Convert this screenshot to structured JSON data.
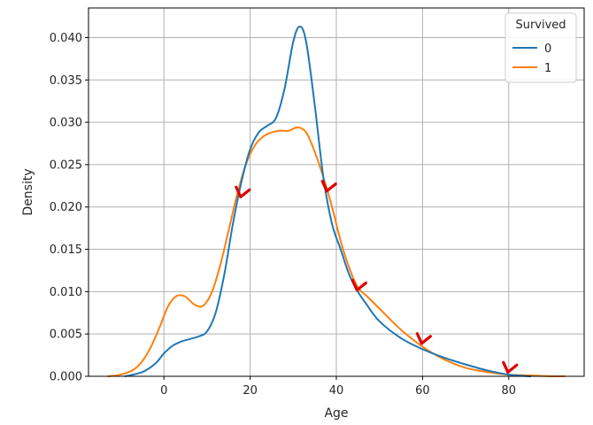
{
  "chart_data": {
    "type": "line",
    "xlabel": "Age",
    "ylabel": "Density",
    "xlim": [
      -17.5,
      97.5
    ],
    "ylim": [
      0,
      0.0435
    ],
    "xticks": [
      0,
      20,
      40,
      60,
      80
    ],
    "xtick_labels": [
      "0",
      "20",
      "40",
      "60",
      "80"
    ],
    "yticks": [
      0,
      0.005,
      0.01,
      0.015,
      0.02,
      0.025,
      0.03,
      0.035,
      0.04
    ],
    "ytick_labels": [
      "0.000",
      "0.005",
      "0.010",
      "0.015",
      "0.020",
      "0.025",
      "0.030",
      "0.035",
      "0.040"
    ],
    "grid": true,
    "legend": {
      "title": "Survived",
      "placement": "top-right"
    },
    "series": [
      {
        "name": "0",
        "color": "#1f77b4",
        "x": [
          -9,
          -5,
          -2,
          0,
          2,
          4,
          6,
          8,
          10,
          12,
          14,
          16,
          18,
          20,
          22,
          24,
          26,
          28,
          30,
          31.5,
          33,
          35,
          37,
          39,
          41,
          43,
          45,
          47,
          50,
          55,
          60,
          65,
          70,
          75,
          80,
          85
        ],
        "y": [
          0.0,
          0.0005,
          0.0015,
          0.0027,
          0.0036,
          0.0041,
          0.0044,
          0.0047,
          0.0053,
          0.0075,
          0.012,
          0.018,
          0.023,
          0.0268,
          0.0288,
          0.0296,
          0.0305,
          0.034,
          0.0395,
          0.0413,
          0.0395,
          0.032,
          0.0235,
          0.018,
          0.015,
          0.012,
          0.01,
          0.0085,
          0.0065,
          0.0045,
          0.0032,
          0.0022,
          0.0014,
          0.0007,
          0.0002,
          0.0
        ]
      },
      {
        "name": "1",
        "color": "#ff7f0e",
        "x": [
          -13,
          -10,
          -7,
          -5,
          -3,
          -1,
          1,
          3,
          5,
          7,
          9,
          11,
          13,
          15,
          17,
          19,
          21,
          23,
          25,
          27,
          29,
          31,
          33,
          35,
          37,
          39,
          41,
          43,
          45,
          47,
          50,
          55,
          60,
          65,
          70,
          75,
          80,
          85,
          90,
          93
        ],
        "y": [
          0.0,
          0.0002,
          0.0008,
          0.0018,
          0.0035,
          0.0058,
          0.0083,
          0.0095,
          0.0094,
          0.0085,
          0.0083,
          0.0098,
          0.013,
          0.0172,
          0.0215,
          0.025,
          0.0272,
          0.0283,
          0.0288,
          0.029,
          0.029,
          0.0294,
          0.0288,
          0.0265,
          0.0235,
          0.02,
          0.016,
          0.0128,
          0.0105,
          0.0095,
          0.008,
          0.0055,
          0.0035,
          0.002,
          0.001,
          0.0005,
          0.0002,
          0.0001,
          0.0,
          0.0
        ]
      }
    ],
    "annotations": [
      {
        "type": "checkmark",
        "color": "#dd0000",
        "x": 18,
        "y": 0.0215
      },
      {
        "type": "checkmark",
        "color": "#dd0000",
        "x": 38,
        "y": 0.0222
      },
      {
        "type": "checkmark",
        "color": "#dd0000",
        "x": 45,
        "y": 0.0105
      },
      {
        "type": "checkmark",
        "color": "#dd0000",
        "x": 60,
        "y": 0.0042
      },
      {
        "type": "checkmark",
        "color": "#dd0000",
        "x": 80,
        "y": 0.0008
      }
    ]
  }
}
